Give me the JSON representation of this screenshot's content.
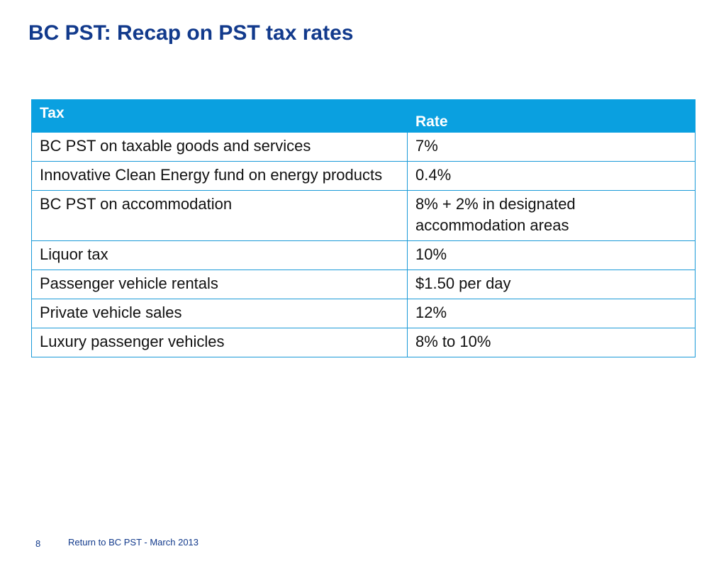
{
  "slide": {
    "title": "BC PST: Recap on PST tax rates"
  },
  "table": {
    "headers": {
      "tax": "Tax",
      "rate": "Rate"
    },
    "rows": [
      {
        "tax": "BC PST on taxable goods and services",
        "rate": "7%"
      },
      {
        "tax": "Innovative Clean Energy fund on energy products",
        "rate": "0.4%"
      },
      {
        "tax": "BC PST on accommodation",
        "rate": "8% + 2% in designated accommodation areas"
      },
      {
        "tax": "Liquor tax",
        "rate": "10%"
      },
      {
        "tax": "Passenger vehicle rentals",
        "rate": "$1.50 per day"
      },
      {
        "tax": "Private vehicle sales",
        "rate": "12%"
      },
      {
        "tax": "Luxury passenger vehicles",
        "rate": "8% to 10%"
      }
    ]
  },
  "footer": {
    "page_number": "8",
    "text": "Return to BC PST - March 2013"
  },
  "colors": {
    "title": "#123a8c",
    "header_background": "#0aa0e0",
    "border": "#1a9ad8"
  }
}
